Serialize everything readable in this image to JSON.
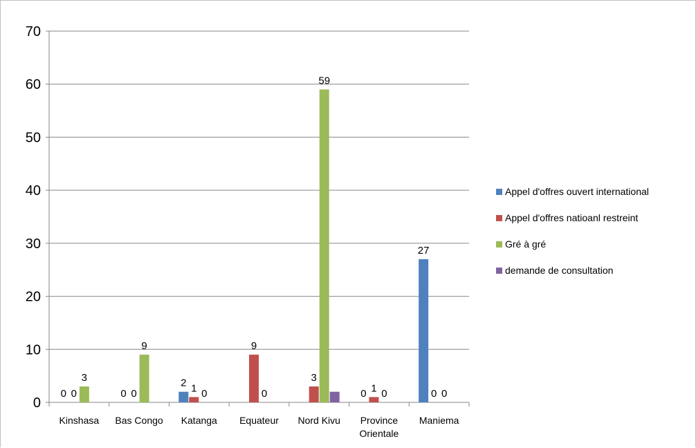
{
  "chart_data": {
    "type": "bar",
    "title": "",
    "xlabel": "",
    "ylabel": "",
    "ylim": [
      0,
      70
    ],
    "yticks": [
      0,
      10,
      20,
      30,
      40,
      50,
      60,
      70
    ],
    "grid": true,
    "legend_position": "right",
    "categories": [
      [
        "Kinshasa"
      ],
      [
        "Bas Congo"
      ],
      [
        "Katanga"
      ],
      [
        "Equateur"
      ],
      [
        "Nord Kivu"
      ],
      [
        "Province",
        "Orientale"
      ],
      [
        "Maniema"
      ]
    ],
    "series": [
      {
        "name": "Appel d'offres ouvert international",
        "color": "#4f81bd",
        "values": [
          0,
          0,
          2,
          0,
          0,
          0,
          27
        ],
        "labels": [
          "0",
          "0",
          "2",
          "",
          "",
          "0",
          "27"
        ]
      },
      {
        "name": "Appel d'offres natioanl restreint",
        "color": "#c0504d",
        "values": [
          0,
          0,
          1,
          9,
          3,
          1,
          0
        ],
        "labels": [
          "0",
          "0",
          "1",
          "9",
          "3",
          "1",
          "0"
        ]
      },
      {
        "name": "Gré à gré",
        "color": "#9bbb59",
        "values": [
          3,
          9,
          0,
          0,
          59,
          0,
          0
        ],
        "labels": [
          "3",
          "9",
          "0",
          "0",
          "59",
          "0",
          "0"
        ]
      },
      {
        "name": "demande de consultation",
        "color": "#8064a2",
        "values": [
          0,
          0,
          0,
          0,
          2,
          0,
          0
        ],
        "labels": [
          "",
          "",
          "",
          "",
          "",
          "",
          ""
        ]
      }
    ]
  }
}
